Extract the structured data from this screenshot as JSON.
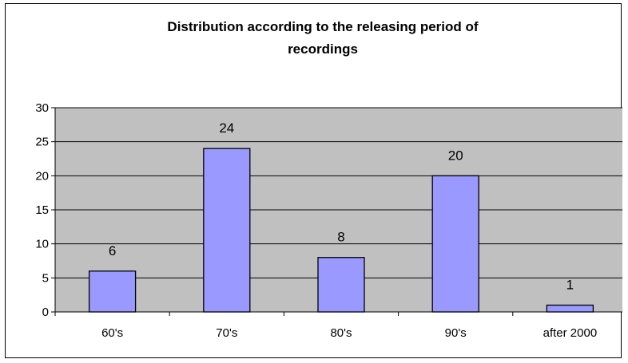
{
  "chart_data": {
    "type": "bar",
    "title": "Distribution according to the releasing period of recordings",
    "title_lines": [
      "Distribution according to the releasing period of",
      "recordings"
    ],
    "categories": [
      "60's",
      "70's",
      "80's",
      "90's",
      "after 2000"
    ],
    "values": [
      6,
      24,
      8,
      20,
      1
    ],
    "data_labels": [
      "6",
      "24",
      "8",
      "20",
      "1"
    ],
    "ylim": [
      0,
      30
    ],
    "yticks": [
      0,
      5,
      10,
      15,
      20,
      25,
      30
    ],
    "ytick_labels": [
      "0",
      "5",
      "10",
      "15",
      "20",
      "25",
      "30"
    ],
    "grid": true,
    "legend": "none",
    "colors": {
      "bar_fill": "#9999ff",
      "bar_stroke": "#000000",
      "plot_background": "#c0c0c0",
      "gridline": "#000000"
    }
  }
}
